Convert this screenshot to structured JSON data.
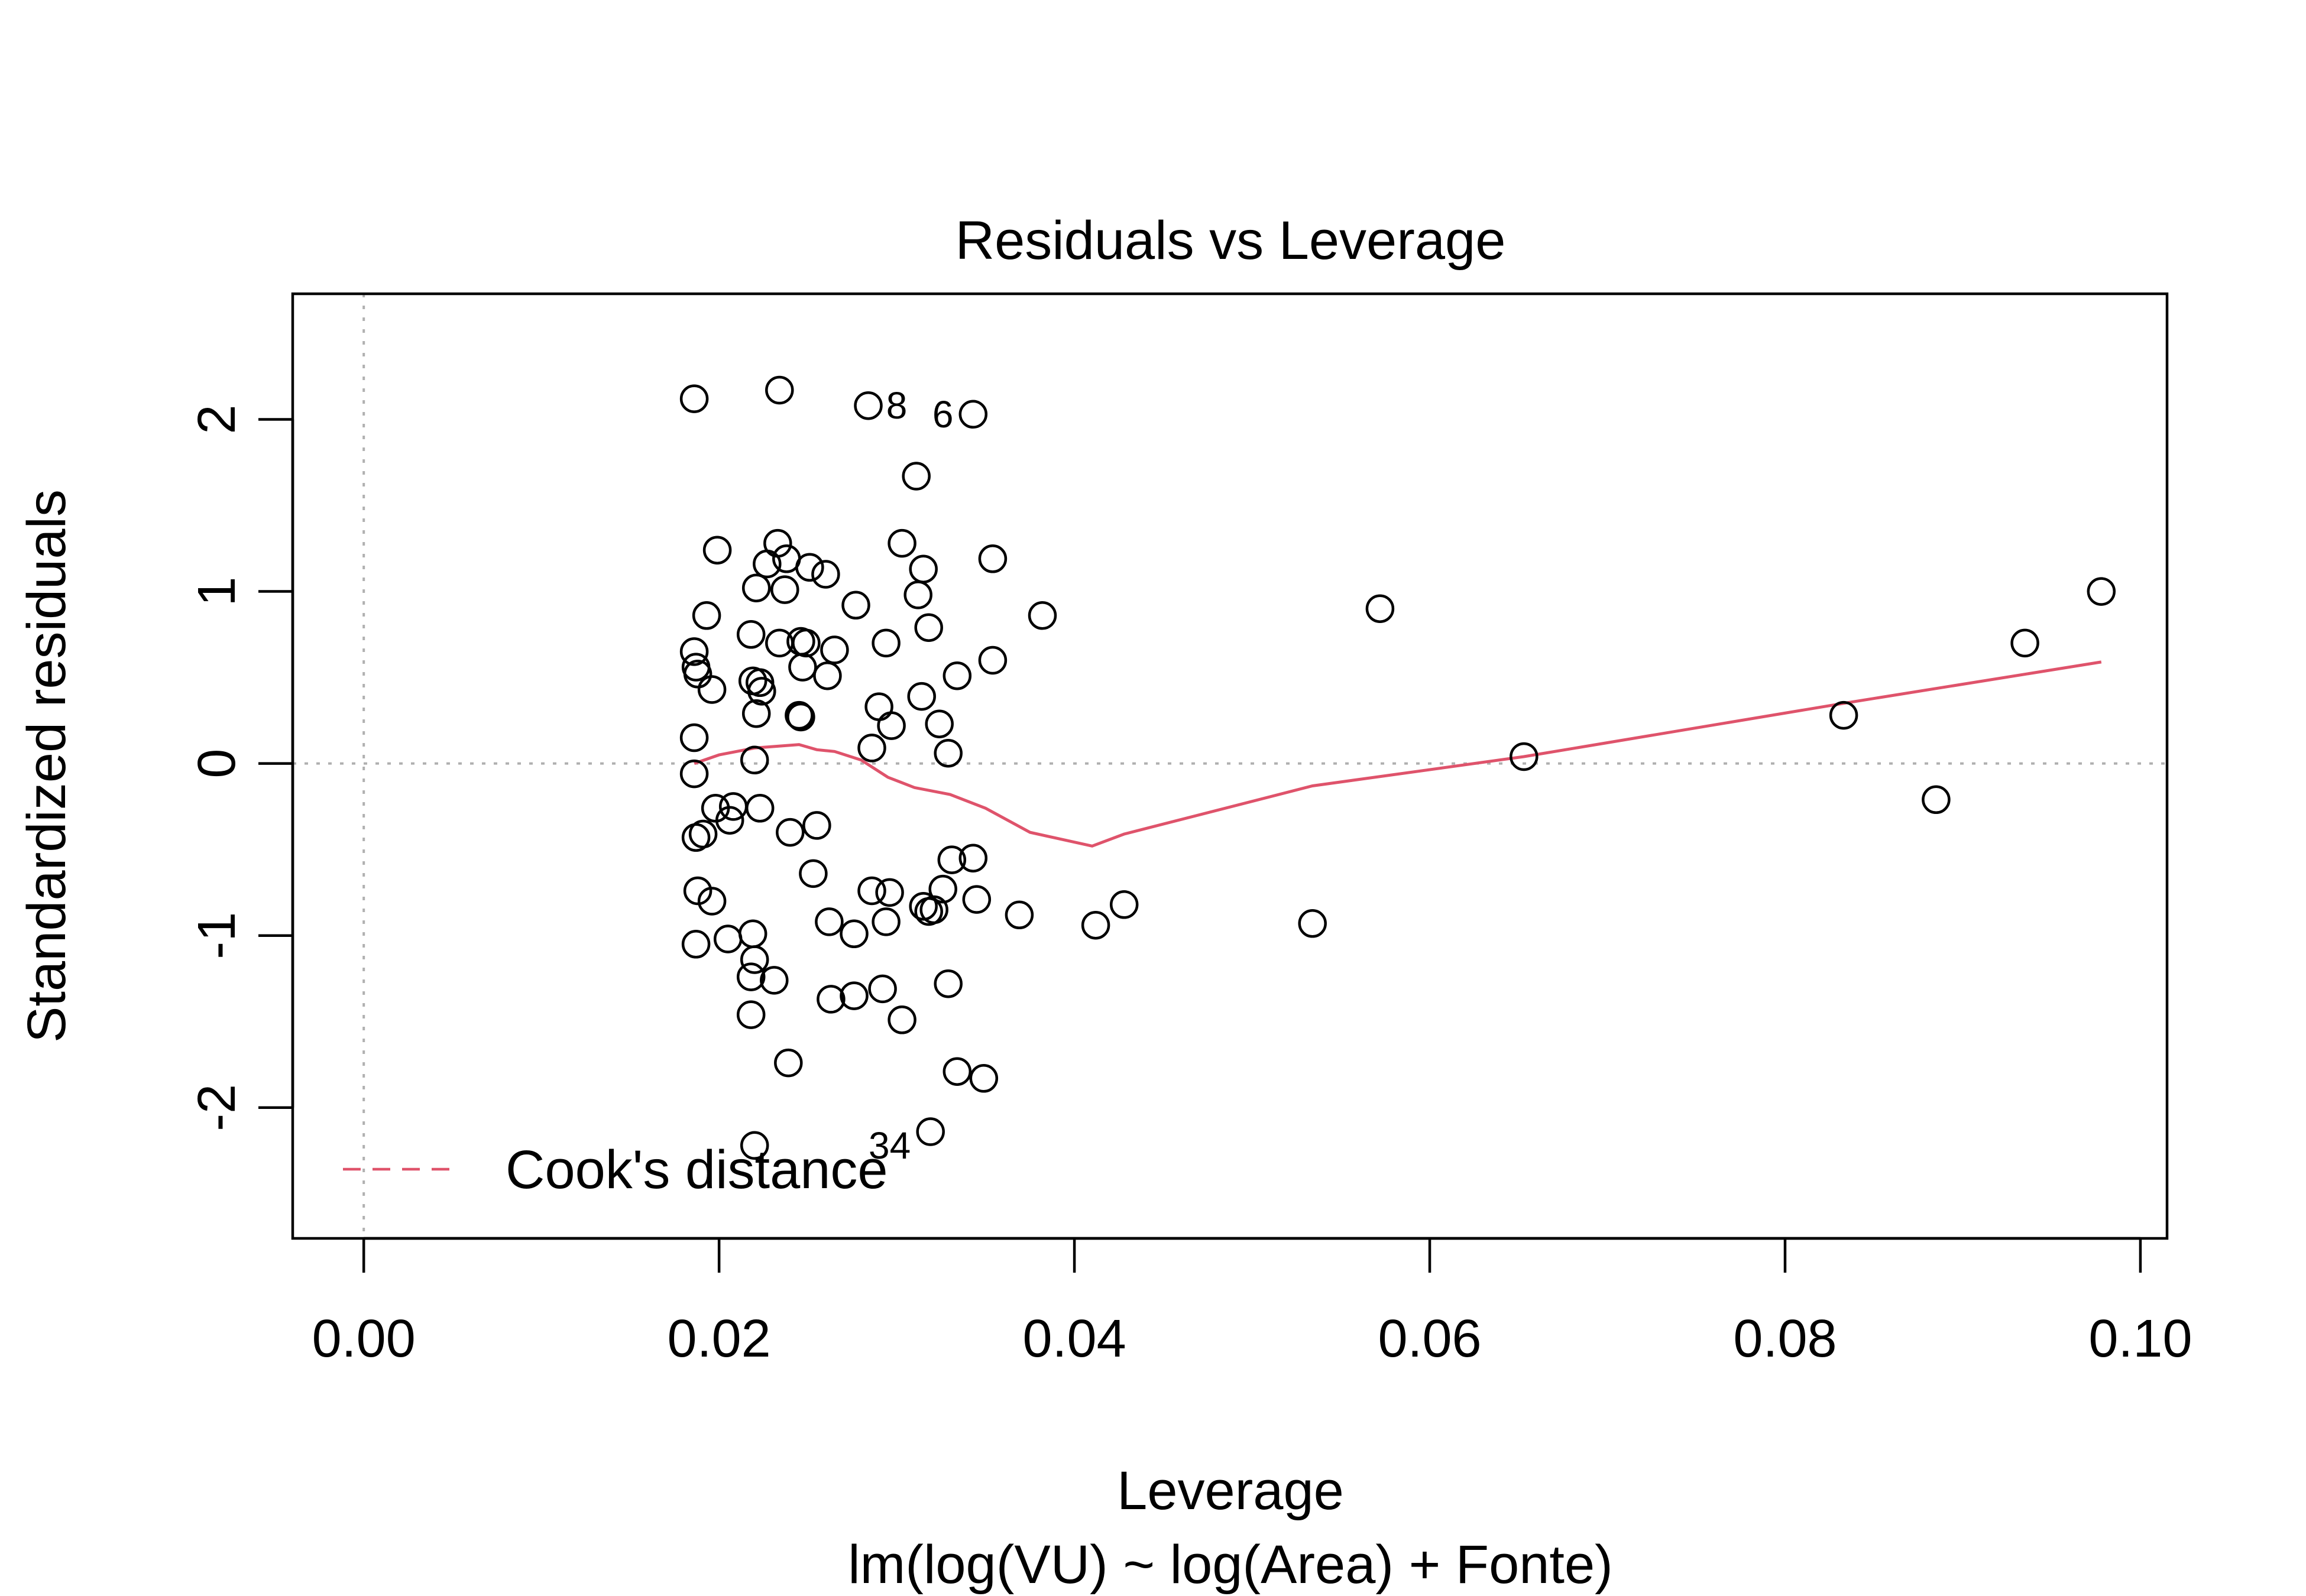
{
  "chart_data": {
    "type": "scatter",
    "title": "Residuals vs Leverage",
    "xlabel": "Leverage",
    "subtitle": "lm(log(VU) ~ log(Area) + Fonte)",
    "ylabel": "Standardized residuals",
    "xlim": [
      -0.004,
      0.1015
    ],
    "ylim": [
      -2.76,
      2.73
    ],
    "x_ticks": [
      0.0,
      0.02,
      0.04,
      0.06,
      0.08,
      0.1
    ],
    "x_tick_labels": [
      "0.00",
      "0.02",
      "0.04",
      "0.06",
      "0.08",
      "0.10"
    ],
    "y_ticks": [
      -2,
      -1,
      0,
      1,
      2
    ],
    "y_tick_labels": [
      "-2",
      "-1",
      "0",
      "1",
      "2"
    ],
    "reference_lines": {
      "horizontal": 0,
      "vertical": 0
    },
    "colors": {
      "points": "#000000",
      "smooth": "#df536b",
      "reference": "#b0b0b0"
    },
    "legend": {
      "position": "bottom-left",
      "label": "Cook's distance",
      "line_style": "dashed",
      "color": "#df536b"
    },
    "point_labels": [
      {
        "text": "8",
        "x": 0.03,
        "y": 2.08
      },
      {
        "text": "6",
        "x": 0.0326,
        "y": 2.03
      },
      {
        "text": "34",
        "x": 0.0296,
        "y": -2.22
      }
    ],
    "points": [
      {
        "x": 0.0186,
        "y": 2.12
      },
      {
        "x": 0.0234,
        "y": 2.17
      },
      {
        "x": 0.0284,
        "y": 2.08
      },
      {
        "x": 0.0343,
        "y": 2.03
      },
      {
        "x": 0.0311,
        "y": 1.67
      },
      {
        "x": 0.0199,
        "y": 1.24
      },
      {
        "x": 0.0233,
        "y": 1.28
      },
      {
        "x": 0.0227,
        "y": 1.16
      },
      {
        "x": 0.0238,
        "y": 1.19
      },
      {
        "x": 0.0251,
        "y": 1.14
      },
      {
        "x": 0.026,
        "y": 1.1
      },
      {
        "x": 0.0303,
        "y": 1.28
      },
      {
        "x": 0.0315,
        "y": 1.13
      },
      {
        "x": 0.0354,
        "y": 1.19
      },
      {
        "x": 0.0221,
        "y": 1.02
      },
      {
        "x": 0.0237,
        "y": 1.01
      },
      {
        "x": 0.0312,
        "y": 0.98
      },
      {
        "x": 0.0193,
        "y": 0.86
      },
      {
        "x": 0.0277,
        "y": 0.92
      },
      {
        "x": 0.0382,
        "y": 0.86
      },
      {
        "x": 0.0318,
        "y": 0.79
      },
      {
        "x": 0.0186,
        "y": 0.65
      },
      {
        "x": 0.0218,
        "y": 0.75
      },
      {
        "x": 0.0234,
        "y": 0.7
      },
      {
        "x": 0.0246,
        "y": 0.71
      },
      {
        "x": 0.0249,
        "y": 0.7
      },
      {
        "x": 0.0265,
        "y": 0.66
      },
      {
        "x": 0.0294,
        "y": 0.7
      },
      {
        "x": 0.0187,
        "y": 0.56
      },
      {
        "x": 0.0188,
        "y": 0.52
      },
      {
        "x": 0.0196,
        "y": 0.43
      },
      {
        "x": 0.0219,
        "y": 0.48
      },
      {
        "x": 0.0223,
        "y": 0.47
      },
      {
        "x": 0.0224,
        "y": 0.42
      },
      {
        "x": 0.0247,
        "y": 0.56
      },
      {
        "x": 0.0261,
        "y": 0.51
      },
      {
        "x": 0.0334,
        "y": 0.51
      },
      {
        "x": 0.0354,
        "y": 0.6
      },
      {
        "x": 0.0221,
        "y": 0.29
      },
      {
        "x": 0.0245,
        "y": 0.28
      },
      {
        "x": 0.0246,
        "y": 0.27
      },
      {
        "x": 0.029,
        "y": 0.33
      },
      {
        "x": 0.0297,
        "y": 0.22
      },
      {
        "x": 0.0314,
        "y": 0.39
      },
      {
        "x": 0.0324,
        "y": 0.23
      },
      {
        "x": 0.0186,
        "y": 0.15
      },
      {
        "x": 0.0286,
        "y": 0.09
      },
      {
        "x": 0.0329,
        "y": 0.06
      },
      {
        "x": 0.022,
        "y": 0.02
      },
      {
        "x": 0.0186,
        "y": -0.06
      },
      {
        "x": 0.0198,
        "y": -0.26
      },
      {
        "x": 0.0206,
        "y": -0.33
      },
      {
        "x": 0.0208,
        "y": -0.25
      },
      {
        "x": 0.0223,
        "y": -0.26
      },
      {
        "x": 0.0255,
        "y": -0.36
      },
      {
        "x": 0.0187,
        "y": -0.43
      },
      {
        "x": 0.0191,
        "y": -0.41
      },
      {
        "x": 0.024,
        "y": -0.4
      },
      {
        "x": 0.0253,
        "y": -0.64
      },
      {
        "x": 0.0331,
        "y": -0.56
      },
      {
        "x": 0.0343,
        "y": -0.55
      },
      {
        "x": 0.0188,
        "y": -0.74
      },
      {
        "x": 0.0196,
        "y": -0.8
      },
      {
        "x": 0.0286,
        "y": -0.74
      },
      {
        "x": 0.0296,
        "y": -0.75
      },
      {
        "x": 0.0326,
        "y": -0.73
      },
      {
        "x": 0.0315,
        "y": -0.83
      },
      {
        "x": 0.0318,
        "y": -0.86
      },
      {
        "x": 0.0321,
        "y": -0.85
      },
      {
        "x": 0.0345,
        "y": -0.79
      },
      {
        "x": 0.0369,
        "y": -0.88
      },
      {
        "x": 0.0428,
        "y": -0.82
      },
      {
        "x": 0.0262,
        "y": -0.92
      },
      {
        "x": 0.0294,
        "y": -0.92
      },
      {
        "x": 0.0412,
        "y": -0.94
      },
      {
        "x": 0.0187,
        "y": -1.05
      },
      {
        "x": 0.0205,
        "y": -1.02
      },
      {
        "x": 0.0219,
        "y": -0.99
      },
      {
        "x": 0.0276,
        "y": -0.99
      },
      {
        "x": 0.022,
        "y": -1.14
      },
      {
        "x": 0.0218,
        "y": -1.24
      },
      {
        "x": 0.0231,
        "y": -1.26
      },
      {
        "x": 0.0263,
        "y": -1.37
      },
      {
        "x": 0.0276,
        "y": -1.35
      },
      {
        "x": 0.0292,
        "y": -1.31
      },
      {
        "x": 0.0329,
        "y": -1.28
      },
      {
        "x": 0.0218,
        "y": -1.46
      },
      {
        "x": 0.0303,
        "y": -1.49
      },
      {
        "x": 0.0239,
        "y": -1.74
      },
      {
        "x": 0.0334,
        "y": -1.79
      },
      {
        "x": 0.0349,
        "y": -1.83
      },
      {
        "x": 0.022,
        "y": -2.22
      },
      {
        "x": 0.0319,
        "y": -2.14
      },
      {
        "x": 0.0534,
        "y": -0.93
      },
      {
        "x": 0.0572,
        "y": 0.9
      },
      {
        "x": 0.0653,
        "y": 0.04
      },
      {
        "x": 0.0833,
        "y": 0.28
      },
      {
        "x": 0.0885,
        "y": -0.21
      },
      {
        "x": 0.0935,
        "y": 0.7
      },
      {
        "x": 0.0978,
        "y": 1.0
      }
    ],
    "smooth_line": [
      {
        "x": 0.0186,
        "y": 0.0
      },
      {
        "x": 0.02,
        "y": 0.05
      },
      {
        "x": 0.022,
        "y": 0.09
      },
      {
        "x": 0.0245,
        "y": 0.11
      },
      {
        "x": 0.0255,
        "y": 0.08
      },
      {
        "x": 0.0265,
        "y": 0.07
      },
      {
        "x": 0.028,
        "y": 0.02
      },
      {
        "x": 0.0295,
        "y": -0.08
      },
      {
        "x": 0.031,
        "y": -0.14
      },
      {
        "x": 0.033,
        "y": -0.18
      },
      {
        "x": 0.035,
        "y": -0.26
      },
      {
        "x": 0.0375,
        "y": -0.4
      },
      {
        "x": 0.041,
        "y": -0.48
      },
      {
        "x": 0.0428,
        "y": -0.41
      },
      {
        "x": 0.0534,
        "y": -0.13
      },
      {
        "x": 0.0653,
        "y": 0.04
      },
      {
        "x": 0.0833,
        "y": 0.35
      },
      {
        "x": 0.0978,
        "y": 0.59
      }
    ]
  }
}
